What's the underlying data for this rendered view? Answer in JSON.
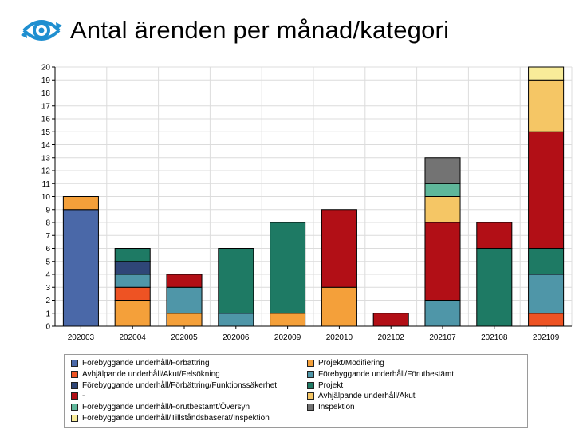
{
  "header": {
    "title": "Antal ärenden per månad/kategori",
    "logo_icon": "eye-logo-icon"
  },
  "chart_data": {
    "type": "bar",
    "stacked": true,
    "title": "Antal ärenden per månad/kategori",
    "xlabel": "",
    "ylabel": "",
    "ylim": [
      0,
      20
    ],
    "yticks": [
      0,
      1,
      2,
      3,
      4,
      5,
      6,
      7,
      8,
      9,
      10,
      11,
      12,
      13,
      14,
      15,
      16,
      17,
      18,
      19,
      20
    ],
    "grid": true,
    "legend_placement": "bottom",
    "categories": [
      "202003",
      "202004",
      "202005",
      "202006",
      "202009",
      "202010",
      "202102",
      "202107",
      "202108",
      "202109"
    ],
    "series": [
      {
        "name": "Förebyggande underhåll/Förbättring",
        "color": "#4a68a8",
        "values": [
          9,
          0,
          0,
          0,
          0,
          0,
          0,
          0,
          0,
          0
        ]
      },
      {
        "name": "Projekt/Modifiering",
        "color": "#f4a03a",
        "values": [
          1,
          2,
          1,
          0,
          1,
          3,
          0,
          0,
          0,
          0
        ]
      },
      {
        "name": "Avhjälpande underhåll/Akut/Felsökning",
        "color": "#ee5323",
        "values": [
          0,
          1,
          0,
          0,
          0,
          0,
          0,
          0,
          0,
          1
        ]
      },
      {
        "name": "Förebyggande underhåll/Förutbestämt",
        "color": "#4f96a8",
        "values": [
          0,
          1,
          2,
          1,
          0,
          0,
          0,
          2,
          0,
          3
        ]
      },
      {
        "name": "Förebyggande underhåll/Förbättring/Funktionssäkerhet",
        "color": "#2f4677",
        "values": [
          0,
          1,
          0,
          0,
          0,
          0,
          0,
          0,
          0,
          0
        ]
      },
      {
        "name": "Projekt",
        "color": "#1e7a64",
        "values": [
          0,
          1,
          0,
          5,
          7,
          0,
          0,
          0,
          6,
          2
        ]
      },
      {
        "name": "-",
        "color": "#b20f16",
        "values": [
          0,
          0,
          1,
          0,
          0,
          6,
          1,
          6,
          2,
          9
        ]
      },
      {
        "name": "Avhjälpande underhåll/Akut",
        "color": "#f5c665",
        "values": [
          0,
          0,
          0,
          0,
          0,
          0,
          0,
          2,
          0,
          4
        ]
      },
      {
        "name": "Förebyggande underhåll/Förutbestämt/Översyn",
        "color": "#5fb79a",
        "values": [
          0,
          0,
          0,
          0,
          0,
          0,
          0,
          1,
          0,
          0
        ]
      },
      {
        "name": "Inspektion",
        "color": "#737373",
        "values": [
          0,
          0,
          0,
          0,
          0,
          0,
          0,
          2,
          0,
          0
        ]
      },
      {
        "name": "Förebyggande underhåll/Tillståndsbaserat/Inspektion",
        "color": "#f8ec99",
        "values": [
          0,
          0,
          0,
          0,
          0,
          0,
          0,
          0,
          0,
          1
        ]
      }
    ]
  },
  "legend": {
    "items": [
      {
        "label": "Förebyggande underhåll/Förbättring",
        "color": "#4a68a8"
      },
      {
        "label": "Projekt/Modifiering",
        "color": "#f4a03a"
      },
      {
        "label": "Avhjälpande underhåll/Akut/Felsökning",
        "color": "#ee5323"
      },
      {
        "label": "Förebyggande underhåll/Förutbestämt",
        "color": "#4f96a8"
      },
      {
        "label": "Förebyggande underhåll/Förbättring/Funktionssäkerhet",
        "color": "#2f4677"
      },
      {
        "label": "Projekt",
        "color": "#1e7a64"
      },
      {
        "label": "-",
        "color": "#b20f16"
      },
      {
        "label": "Avhjälpande underhåll/Akut",
        "color": "#f5c665"
      },
      {
        "label": "Förebyggande underhåll/Förutbestämt/Översyn",
        "color": "#5fb79a"
      },
      {
        "label": "Inspektion",
        "color": "#737373"
      },
      {
        "label": "Förebyggande underhåll/Tillståndsbaserat/Inspektion",
        "color": "#f8ec99"
      }
    ]
  }
}
